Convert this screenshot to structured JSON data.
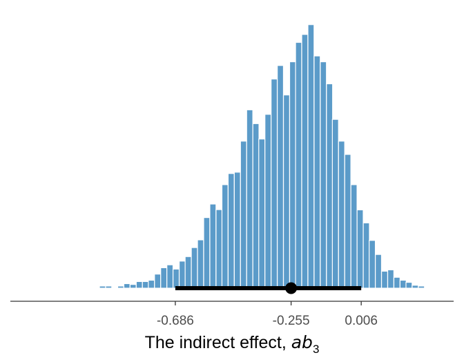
{
  "chart_data": {
    "type": "bar",
    "subtype": "histogram",
    "xlabel": {
      "text": "The indirect effect, ",
      "math": "ab",
      "subscript": "3"
    },
    "ylabel": "",
    "x_range": [
      -1.3,
      0.35
    ],
    "y_range": [
      0,
      1
    ],
    "bin_width": 0.0228,
    "bins_x": [
      -1.231,
      -1.208,
      -1.186,
      -1.163,
      -1.14,
      -1.117,
      -1.094,
      -1.071,
      -1.049,
      -1.026,
      -1.003,
      -0.98,
      -0.957,
      -0.934,
      -0.912,
      -0.889,
      -0.866,
      -0.843,
      -0.82,
      -0.797,
      -0.775,
      -0.752,
      -0.729,
      -0.706,
      -0.683,
      -0.66,
      -0.638,
      -0.615,
      -0.592,
      -0.569,
      -0.546,
      -0.523,
      -0.501,
      -0.478,
      -0.455,
      -0.432,
      -0.409,
      -0.386,
      -0.364,
      -0.341,
      -0.318,
      -0.295,
      -0.272,
      -0.249,
      -0.227,
      -0.204,
      -0.181,
      -0.158,
      -0.135,
      -0.112,
      -0.09,
      -0.067,
      -0.044,
      -0.021,
      0.002,
      0.025,
      0.047,
      0.07,
      0.093,
      0.116,
      0.139,
      0.162,
      0.184,
      0.207,
      0.23
    ],
    "bins_height": [
      0.003,
      0,
      0,
      0,
      0,
      0,
      0,
      0,
      0,
      0,
      0,
      0.003,
      0.008,
      0.008,
      0,
      0.008,
      0.017,
      0.014,
      0.025,
      0.025,
      0.03,
      0.053,
      0.077,
      0.088,
      0.072,
      0.102,
      0.119,
      0.153,
      0.182,
      0.266,
      0.317,
      0.296,
      0.39,
      0.432,
      0.437,
      0.554,
      0.672,
      0.62,
      0.562,
      0.655,
      0.788,
      0.839,
      0.728,
      0.853,
      0.926,
      0.956,
      0.993,
      0.875,
      0.853,
      0.77,
      0.636,
      0.554,
      0.504,
      0.39,
      0.295,
      0.246,
      0.18,
      0.127,
      0.064,
      0.069,
      0.041,
      0.03,
      0.022,
      0.011,
      0.008
    ],
    "interval": {
      "lower": -0.686,
      "estimate": -0.255,
      "upper": 0.006
    },
    "x_ticks": [
      -0.686,
      -0.255,
      0.006
    ],
    "x_tick_labels": [
      "-0.686",
      "-0.255",
      "0.006"
    ],
    "grid": false,
    "legend": "none",
    "colors": {
      "bars": "#5b9bc9",
      "bar_edge": "#ffffff",
      "interval": "#000000",
      "axis": "#4d4d4d",
      "tick_text": "#4d4d4d"
    }
  }
}
